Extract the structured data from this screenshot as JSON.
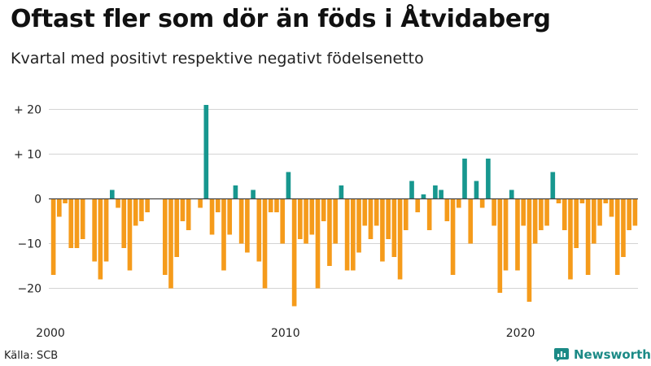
{
  "title": "Oftast fler som dör än föds i Åtvidaberg",
  "subtitle": "Kvartal med positivt respektive negativt födelsenetto",
  "source": "Källa: SCB",
  "brand": {
    "name": "Newsworthy",
    "logo_icon": "bar-chart-bubble-icon"
  },
  "colors": {
    "positive": "#17978f",
    "negative": "#f59b1b",
    "grid": "#d4d4d4",
    "zero": "#444444"
  },
  "chart_data": {
    "type": "bar",
    "title": "Oftast fler som dör än föds i Åtvidaberg",
    "subtitle": "Kvartal med positivt respektive negativt födelsenetto",
    "xlabel": "",
    "ylabel": "",
    "ylim": [
      -25,
      25
    ],
    "yticks": [
      20,
      10,
      0,
      -10,
      -20
    ],
    "ytick_labels": [
      "+ 20",
      "+ 10",
      "0",
      "−10",
      "−20"
    ],
    "xtick_labels": [
      {
        "label": "2000",
        "index": 0
      },
      {
        "label": "2010",
        "index": 40
      },
      {
        "label": "2020",
        "index": 80
      }
    ],
    "start_period": "2000 Q1",
    "categories": [
      "2000 Q1",
      "2000 Q2",
      "2000 Q3",
      "2000 Q4",
      "2001 Q1",
      "2001 Q2",
      "2001 Q3",
      "2001 Q4",
      "2002 Q1",
      "2002 Q2",
      "2002 Q3",
      "2002 Q4",
      "2003 Q1",
      "2003 Q2",
      "2003 Q3",
      "2003 Q4",
      "2004 Q1",
      "2004 Q2",
      "2004 Q3",
      "2004 Q4",
      "2005 Q1",
      "2005 Q2",
      "2005 Q3",
      "2005 Q4",
      "2006 Q1",
      "2006 Q2",
      "2006 Q3",
      "2006 Q4",
      "2007 Q1",
      "2007 Q2",
      "2007 Q3",
      "2007 Q4",
      "2008 Q1",
      "2008 Q2",
      "2008 Q3",
      "2008 Q4",
      "2009 Q1",
      "2009 Q2",
      "2009 Q3",
      "2009 Q4",
      "2010 Q1",
      "2010 Q2",
      "2010 Q3",
      "2010 Q4",
      "2011 Q1",
      "2011 Q2",
      "2011 Q3",
      "2011 Q4",
      "2012 Q1",
      "2012 Q2",
      "2012 Q3",
      "2012 Q4",
      "2013 Q1",
      "2013 Q2",
      "2013 Q3",
      "2013 Q4",
      "2014 Q1",
      "2014 Q2",
      "2014 Q3",
      "2014 Q4",
      "2015 Q1",
      "2015 Q2",
      "2015 Q3",
      "2015 Q4",
      "2016 Q1",
      "2016 Q2",
      "2016 Q3",
      "2016 Q4",
      "2017 Q1",
      "2017 Q2",
      "2017 Q3",
      "2017 Q4",
      "2018 Q1",
      "2018 Q2",
      "2018 Q3",
      "2018 Q4",
      "2019 Q1",
      "2019 Q2",
      "2019 Q3",
      "2019 Q4",
      "2020 Q1",
      "2020 Q2",
      "2020 Q3",
      "2020 Q4",
      "2021 Q1",
      "2021 Q2",
      "2021 Q3",
      "2021 Q4",
      "2022 Q1",
      "2022 Q2",
      "2022 Q3",
      "2022 Q4",
      "2023 Q1",
      "2023 Q2",
      "2023 Q3",
      "2023 Q4",
      "2024 Q1",
      "2024 Q2",
      "2024 Q3",
      "2024 Q4"
    ],
    "values": [
      -17,
      -4,
      -1,
      -11,
      -11,
      -9,
      0,
      -14,
      -18,
      -14,
      2,
      -2,
      -11,
      -16,
      -6,
      -5,
      -3,
      0,
      0,
      -17,
      -20,
      -13,
      -5,
      -7,
      0,
      -2,
      21,
      -8,
      -3,
      -16,
      -8,
      3,
      -10,
      -12,
      2,
      -14,
      -20,
      -3,
      -3,
      -10,
      6,
      -24,
      -9,
      -10,
      -8,
      -20,
      -5,
      -15,
      -10,
      3,
      -16,
      -16,
      -12,
      -6,
      -9,
      -6,
      -14,
      -9,
      -13,
      -18,
      -7,
      4,
      -3,
      1,
      -7,
      3,
      2,
      -5,
      -17,
      -2,
      9,
      -10,
      4,
      -2,
      9,
      -6,
      -21,
      -16,
      2,
      -16,
      -6,
      -23,
      -10,
      -7,
      -6,
      6,
      -1,
      -7,
      -18,
      -11,
      -1,
      -17,
      -10,
      -6,
      -1,
      -4,
      -17,
      -13,
      -7,
      -6
    ]
  }
}
